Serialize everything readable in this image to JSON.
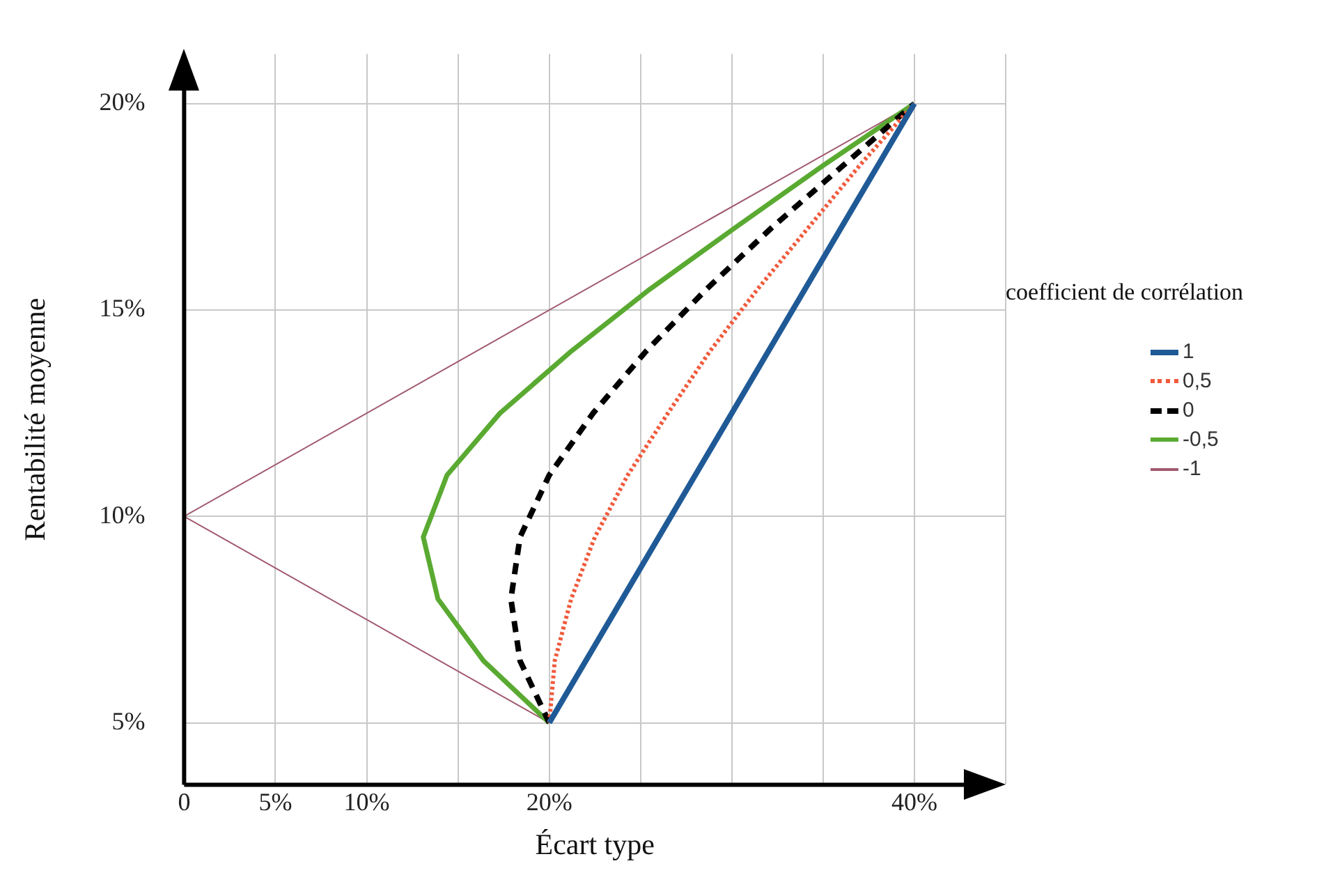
{
  "chart_data": {
    "type": "line",
    "xlabel": "Écart type",
    "ylabel": "Rentabilité moyenne",
    "legend_title": "coefficient de corrélation",
    "xlim": [
      0,
      45
    ],
    "ylim": [
      3.5,
      21.2
    ],
    "xticks": [
      0,
      {
        "value": 5,
        "label": "5%"
      },
      {
        "value": 10,
        "label": "10%"
      },
      {
        "value": 15,
        "label": null
      },
      {
        "value": 20,
        "label": "20%"
      },
      {
        "value": 25,
        "label": null
      },
      {
        "value": 30,
        "label": null
      },
      {
        "value": 35,
        "label": null
      },
      {
        "value": 40,
        "label": "40%"
      },
      {
        "value": 45,
        "label": null
      }
    ],
    "yticks": [
      {
        "value": 5,
        "label": "5%"
      },
      {
        "value": 10,
        "label": "10%"
      },
      {
        "value": 15,
        "label": "15%"
      },
      {
        "value": 20,
        "label": "20%"
      }
    ],
    "grid": true,
    "legend": "right",
    "marker": "none",
    "series": [
      {
        "name": "1",
        "color": "#1f5a96",
        "line_style": "solid",
        "x": [
          20,
          40
        ],
        "values": [
          5,
          20
        ]
      },
      {
        "name": "0,5",
        "color": "#f05a3c",
        "line_style": "dotted",
        "x": [
          20,
          20.3,
          21.2,
          22.5,
          24.3,
          26.5,
          28.8,
          31.4,
          34.2,
          37,
          40
        ],
        "values": [
          5,
          6.5,
          8,
          9.5,
          11,
          12.5,
          14,
          15.5,
          17,
          18.5,
          20
        ]
      },
      {
        "name": "0",
        "color": "#000000",
        "line_style": "dashed",
        "x": [
          20,
          18.4,
          17.9,
          18.4,
          20,
          22.4,
          25.3,
          28.6,
          32.2,
          36.1,
          40
        ],
        "values": [
          5,
          6.5,
          8,
          9.5,
          11,
          12.5,
          14,
          15.5,
          17,
          18.5,
          20
        ]
      },
      {
        "name": "-0,5",
        "color": "#5aaa32",
        "line_style": "solid",
        "x": [
          20,
          16.4,
          13.9,
          13.1,
          14.4,
          17.3,
          21.2,
          25.5,
          30.2,
          35,
          40
        ],
        "values": [
          5,
          6.5,
          8,
          9.5,
          11,
          12.5,
          14,
          15.5,
          17,
          18.5,
          20
        ]
      },
      {
        "name": "-1",
        "color": "#a05a6e",
        "line_style": "solid",
        "x": [
          20,
          0,
          40
        ],
        "values": [
          5,
          10,
          20
        ]
      }
    ]
  }
}
